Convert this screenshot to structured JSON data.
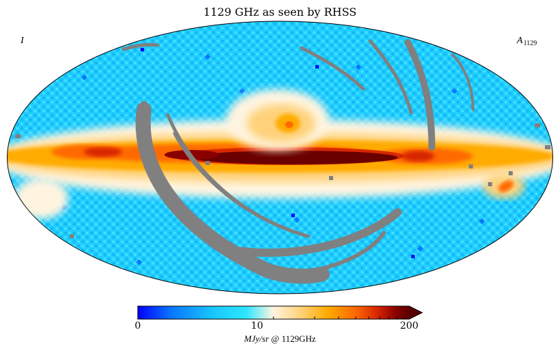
{
  "map": {
    "title": "1129 GHz as seen by RHSS",
    "projection": "Mollweide full-sky",
    "stokes_label": "I",
    "amplitude_label": {
      "symbol": "A",
      "subscript": "1129"
    },
    "masked_color": "#808080",
    "regions": [
      "galactic-plane-band",
      "galactic-center-bulge",
      "north-polar-spur",
      "scan-gap-arc-west",
      "scan-gap-arc-south",
      "scan-gap-arcs-northeast"
    ]
  },
  "colorbar": {
    "ticks": [
      "0",
      "10",
      "200"
    ],
    "tick_values": [
      0,
      10,
      200
    ],
    "extend": "max",
    "unit": "MJy/sr",
    "unit_suffix": "@ 1129GHz",
    "colors": [
      "#0000ff",
      "#0a74ff",
      "#19c8ff",
      "#2ee6ff",
      "#fff4e0",
      "#ffd27a",
      "#ffab00",
      "#ff6a00",
      "#d82800",
      "#8a0000",
      "#5a0000"
    ]
  }
}
